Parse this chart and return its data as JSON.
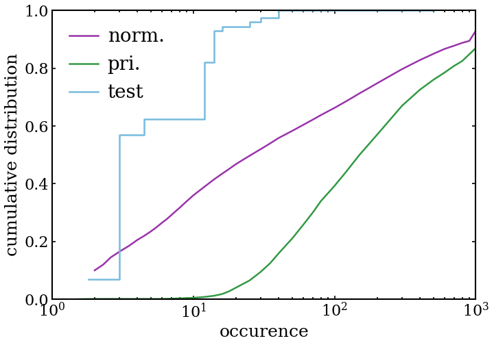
{
  "title": "",
  "xlabel": "occurence",
  "ylabel": "cumulative distribution",
  "xlim": [
    1.0,
    1000.0
  ],
  "ylim": [
    0.0,
    1.0
  ],
  "norm_x": [
    2.0,
    2.3,
    2.6,
    3.0,
    3.5,
    4.0,
    4.5,
    5.0,
    5.5,
    6.0,
    6.5,
    7.0,
    7.5,
    8.0,
    9.0,
    10.0,
    12.0,
    14.0,
    16.0,
    18.0,
    20.0,
    25.0,
    30.0,
    35.0,
    40.0,
    50.0,
    60.0,
    70.0,
    80.0,
    100.0,
    120.0,
    150.0,
    200.0,
    250.0,
    300.0,
    400.0,
    500.0,
    600.0,
    700.0,
    800.0,
    900.0,
    1000.0
  ],
  "norm_y": [
    0.1,
    0.12,
    0.145,
    0.165,
    0.185,
    0.205,
    0.22,
    0.235,
    0.25,
    0.265,
    0.278,
    0.292,
    0.305,
    0.317,
    0.34,
    0.36,
    0.39,
    0.415,
    0.435,
    0.452,
    0.468,
    0.497,
    0.52,
    0.54,
    0.558,
    0.583,
    0.604,
    0.622,
    0.638,
    0.663,
    0.685,
    0.713,
    0.748,
    0.775,
    0.797,
    0.828,
    0.85,
    0.867,
    0.878,
    0.888,
    0.895,
    0.93
  ],
  "pri_x": [
    1.5,
    2.0,
    3.0,
    4.0,
    5.0,
    6.0,
    7.0,
    8.0,
    9.0,
    10.0,
    12.0,
    14.0,
    16.0,
    18.0,
    20.0,
    25.0,
    30.0,
    35.0,
    40.0,
    50.0,
    60.0,
    70.0,
    80.0,
    100.0,
    120.0,
    150.0,
    200.0,
    250.0,
    300.0,
    400.0,
    500.0,
    600.0,
    700.0,
    800.0,
    1000.0
  ],
  "pri_y": [
    0.0,
    0.001,
    0.001,
    0.001,
    0.001,
    0.001,
    0.002,
    0.003,
    0.004,
    0.005,
    0.008,
    0.012,
    0.018,
    0.028,
    0.04,
    0.065,
    0.095,
    0.125,
    0.158,
    0.21,
    0.258,
    0.3,
    0.34,
    0.393,
    0.44,
    0.5,
    0.57,
    0.625,
    0.67,
    0.725,
    0.76,
    0.785,
    0.808,
    0.825,
    0.87
  ],
  "test_x": [
    1.8,
    3.0,
    3.0,
    4.5,
    4.5,
    12.0,
    12.0,
    14.0,
    14.0,
    16.0,
    16.0,
    25.0,
    25.0,
    30.0,
    30.0,
    40.0,
    40.0,
    60.0,
    60.0,
    500.0
  ],
  "test_y": [
    0.07,
    0.07,
    0.57,
    0.57,
    0.625,
    0.625,
    0.82,
    0.82,
    0.93,
    0.93,
    0.945,
    0.945,
    0.96,
    0.96,
    0.975,
    0.975,
    1.0,
    1.0,
    1.0,
    1.0
  ],
  "norm_color": "#9933aa",
  "pri_color": "#339944",
  "test_color": "#77bbdd",
  "legend_labels": [
    "norm.",
    "pri.",
    "test"
  ],
  "legend_fontsize": 20,
  "axis_label_fontsize": 18,
  "tick_fontsize": 16,
  "linewidth": 1.8,
  "background_color": "#ffffff",
  "yticks": [
    0.0,
    0.2,
    0.4,
    0.6,
    0.8,
    1.0
  ]
}
